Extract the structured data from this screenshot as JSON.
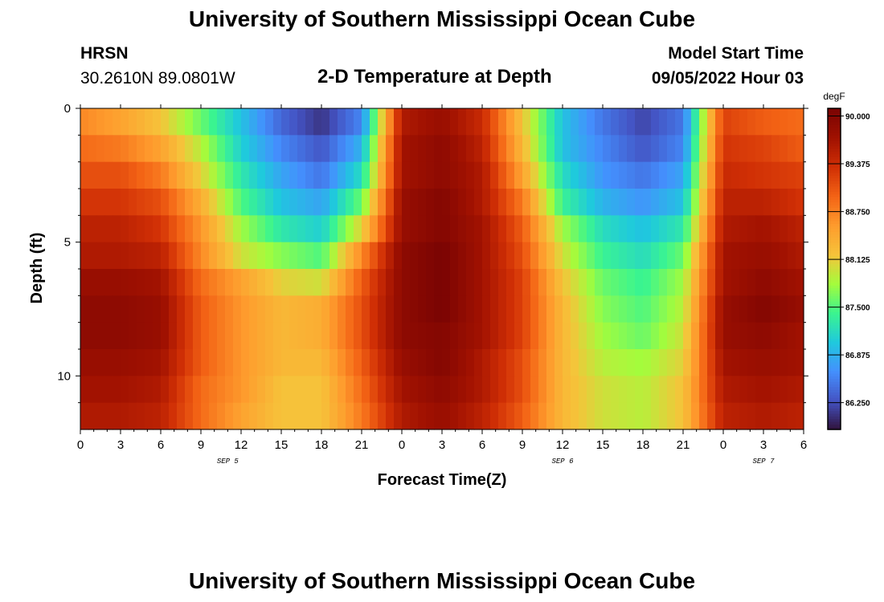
{
  "header": {
    "title": "University of Southern Mississippi Ocean Cube",
    "station": "HRSN",
    "coords": "30.2610N  89.0801W",
    "plot_title": "2-D Temperature at Depth",
    "model_label": "Model Start Time",
    "model_time": "09/05/2022 Hour 03"
  },
  "footer": {
    "title": "University of Southern Mississippi Ocean Cube"
  },
  "chart_data": {
    "type": "heatmap",
    "xlabel": "Forecast Time(Z)",
    "ylabel": "Depth (ft)",
    "x_range_hours": [
      0,
      54
    ],
    "y_range_ft": [
      0,
      12
    ],
    "x_tick_labels": [
      "0",
      "3",
      "6",
      "9",
      "12",
      "15",
      "18",
      "21",
      "0",
      "3",
      "6",
      "9",
      "12",
      "15",
      "18",
      "21",
      "0",
      "3",
      "6"
    ],
    "x_tick_hours": [
      0,
      3,
      6,
      9,
      12,
      15,
      18,
      21,
      24,
      27,
      30,
      33,
      36,
      39,
      42,
      45,
      48,
      51,
      54
    ],
    "date_labels": [
      {
        "label": "SEP 5",
        "hour": 11
      },
      {
        "label": "SEP 6",
        "hour": 36
      },
      {
        "label": "SEP 7",
        "hour": 51
      }
    ],
    "y_tick_labels": [
      "0",
      "5",
      "10"
    ],
    "y_ticks_ft": [
      0,
      5,
      10
    ],
    "colorbar": {
      "unit": "degF",
      "min": 85.9,
      "max": 90.1,
      "tick_labels": [
        "90.000",
        "89.375",
        "88.750",
        "88.125",
        "87.500",
        "86.875",
        "86.250"
      ],
      "tick_values": [
        90.0,
        89.375,
        88.75,
        88.125,
        87.5,
        86.875,
        86.25
      ],
      "colors": [
        "#30123b",
        "#4454c4",
        "#4490fe",
        "#1fc9dd",
        "#3bf58f",
        "#a4fc3c",
        "#f6c33a",
        "#fe9b2d",
        "#f36315",
        "#d02f05",
        "#a01101",
        "#7a0403"
      ]
    },
    "values": {
      "depth_levels_ft": [
        0.5,
        1.5,
        2.5,
        3.5,
        4.5,
        5.5,
        6.5,
        7.5,
        8.5,
        9.5,
        10.5,
        11.5
      ],
      "hours": [
        0,
        3,
        6,
        9,
        12,
        15,
        18,
        21,
        24,
        27,
        30,
        33,
        36,
        39,
        42,
        45,
        48,
        51,
        54
      ],
      "temperature_degF": [
        [
          88.7,
          88.5,
          88.2,
          87.6,
          87.0,
          86.4,
          86.1,
          86.6,
          89.6,
          89.8,
          89.4,
          88.2,
          87.0,
          86.5,
          86.2,
          86.5,
          89.2,
          89.0,
          88.9
        ],
        [
          88.9,
          88.8,
          88.5,
          87.9,
          87.1,
          86.6,
          86.3,
          86.9,
          89.7,
          89.9,
          89.5,
          88.3,
          87.0,
          86.6,
          86.3,
          86.6,
          89.3,
          89.2,
          89.0
        ],
        [
          89.1,
          89.1,
          88.8,
          88.1,
          87.3,
          86.8,
          86.5,
          87.2,
          89.7,
          89.9,
          89.6,
          88.5,
          87.2,
          86.7,
          86.5,
          86.8,
          89.4,
          89.3,
          89.2
        ],
        [
          89.3,
          89.3,
          89.1,
          88.4,
          87.5,
          87.0,
          86.8,
          87.6,
          89.8,
          90.0,
          89.6,
          88.8,
          87.4,
          86.9,
          86.7,
          87.0,
          89.5,
          89.5,
          89.3
        ],
        [
          89.5,
          89.5,
          89.3,
          88.6,
          87.8,
          87.3,
          87.1,
          88.1,
          89.8,
          90.0,
          89.7,
          89.0,
          87.8,
          87.2,
          87.0,
          87.3,
          89.6,
          89.7,
          89.5
        ],
        [
          89.6,
          89.6,
          89.5,
          88.7,
          88.0,
          87.7,
          87.5,
          88.7,
          89.9,
          90.1,
          89.7,
          89.1,
          88.0,
          87.4,
          87.2,
          87.6,
          89.7,
          89.8,
          89.6
        ],
        [
          89.8,
          89.8,
          89.7,
          88.9,
          88.5,
          88.1,
          88.0,
          89.0,
          89.9,
          90.1,
          89.7,
          89.2,
          88.2,
          87.6,
          87.4,
          87.8,
          89.7,
          89.9,
          89.7
        ],
        [
          89.9,
          89.9,
          89.8,
          89.0,
          88.6,
          88.3,
          88.4,
          89.1,
          89.9,
          90.1,
          89.7,
          89.2,
          88.3,
          87.7,
          87.5,
          87.9,
          89.8,
          90.0,
          89.8
        ],
        [
          89.9,
          89.9,
          89.8,
          89.0,
          88.6,
          88.3,
          88.4,
          89.1,
          89.9,
          90.0,
          89.7,
          89.2,
          88.3,
          87.8,
          87.6,
          88.0,
          89.8,
          89.9,
          89.7
        ],
        [
          89.8,
          89.8,
          89.7,
          89.0,
          88.6,
          88.3,
          88.3,
          89.0,
          89.8,
          90.0,
          89.6,
          89.1,
          88.3,
          87.9,
          87.8,
          88.1,
          89.7,
          89.8,
          89.7
        ],
        [
          89.7,
          89.7,
          89.6,
          88.9,
          88.6,
          88.2,
          88.2,
          88.9,
          89.7,
          89.9,
          89.6,
          89.1,
          88.3,
          88.0,
          87.9,
          88.2,
          89.6,
          89.7,
          89.6
        ],
        [
          89.6,
          89.6,
          89.5,
          88.9,
          88.5,
          88.2,
          88.2,
          88.8,
          89.6,
          89.8,
          89.5,
          89.0,
          88.3,
          88.0,
          87.9,
          88.2,
          89.5,
          89.6,
          89.5
        ]
      ]
    }
  }
}
